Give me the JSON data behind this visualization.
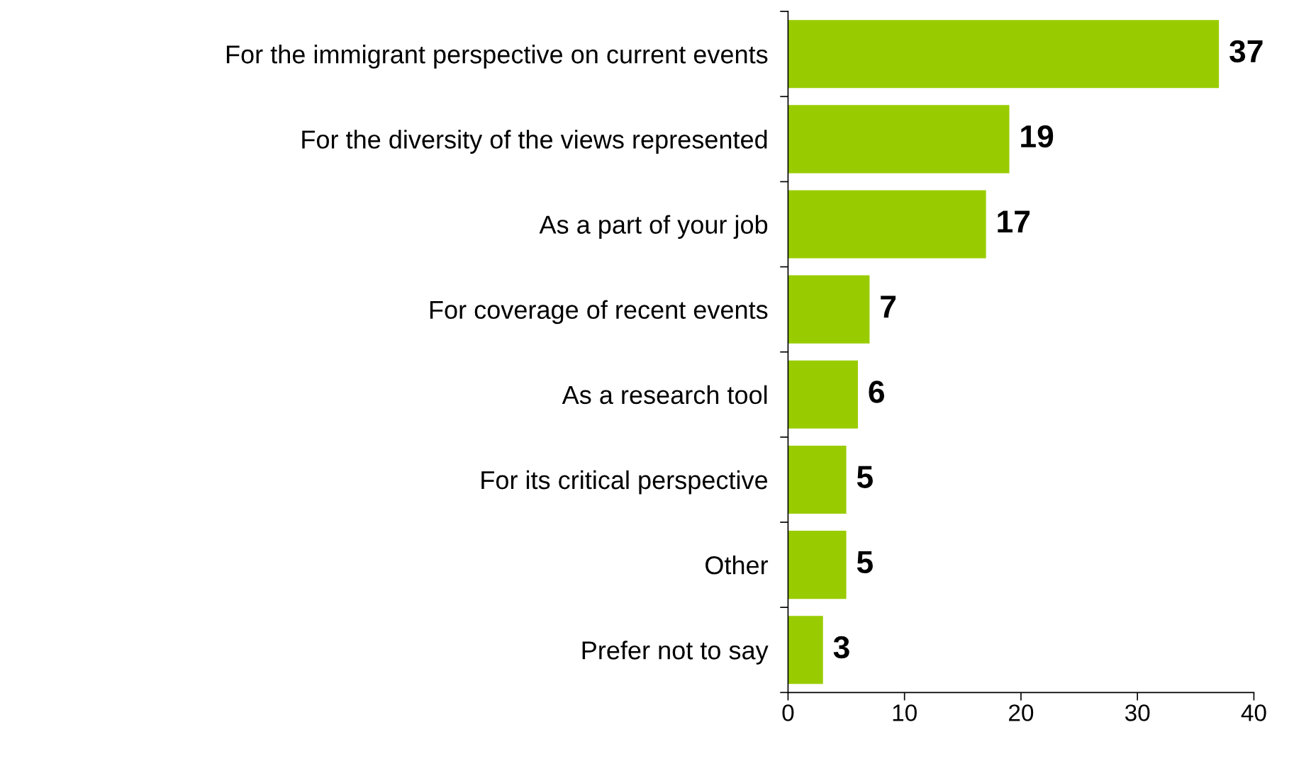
{
  "chart_data": {
    "type": "bar",
    "orientation": "horizontal",
    "categories": [
      "For the immigrant perspective on current events",
      "For the diversity of the views represented",
      "As a part of your job",
      "For coverage of recent events",
      "As a research tool",
      "For its critical perspective",
      "Other",
      "Prefer not to say"
    ],
    "values": [
      37,
      19,
      17,
      7,
      6,
      5,
      5,
      3
    ],
    "color": "#99cc00",
    "xlim": [
      0,
      40
    ],
    "xticks": [
      0,
      10,
      20,
      30,
      40
    ],
    "data_labels": true,
    "grid": false,
    "legend": false
  }
}
